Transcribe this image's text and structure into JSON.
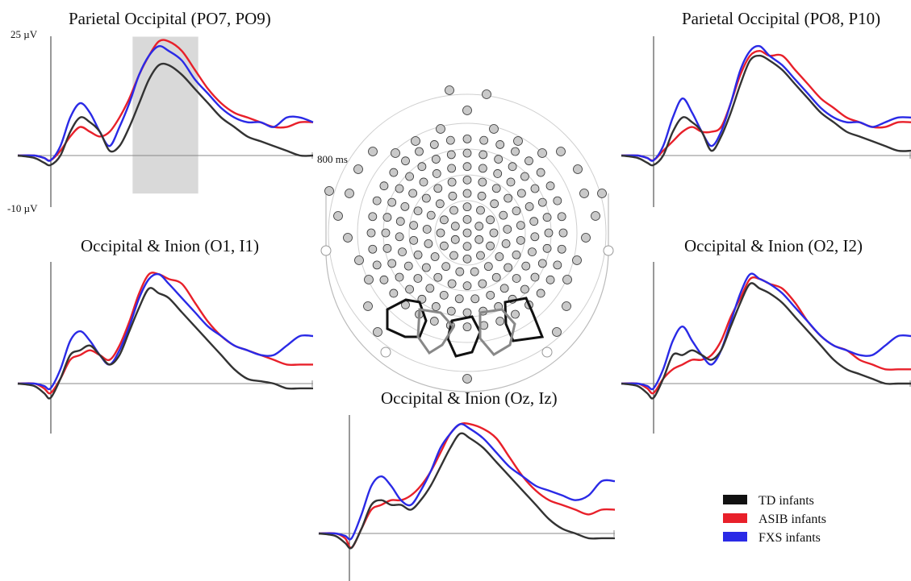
{
  "chart_data": {
    "type": "line",
    "y_units_label_top": "25 µV",
    "y_units_label_bottom": "-10 µV",
    "x_marker_label": "800 ms",
    "ylim": [
      -10,
      25
    ],
    "xlim": [
      -100,
      800
    ],
    "highlight_window": [
      250,
      450
    ],
    "series_names": [
      "TD infants",
      "ASIB infants",
      "FXS infants"
    ],
    "colors": {
      "TD infants": "#333333",
      "ASIB infants": "#e8202a",
      "FXS infants": "#2a2ae6"
    },
    "panels": [
      {
        "id": "po-left",
        "title": "Parietal Occipital (PO7, PO9)",
        "series": [
          {
            "name": "TD infants",
            "x": [
              -100,
              -50,
              -20,
              0,
              30,
              60,
              90,
              120,
              150,
              180,
              210,
              240,
              270,
              300,
              330,
              360,
              400,
              440,
              480,
              520,
              560,
              600,
              640,
              680,
              720,
              760,
              800
            ],
            "y": [
              0,
              -0.5,
              -1.5,
              -2,
              0,
              5,
              8,
              7,
              5,
              1,
              2,
              6,
              11,
              16,
              19,
              19,
              17,
              14,
              11,
              8,
              6,
              4,
              3,
              2,
              1,
              0,
              0
            ]
          },
          {
            "name": "ASIB infants",
            "x": [
              -100,
              -50,
              -20,
              0,
              30,
              60,
              90,
              120,
              150,
              180,
              210,
              240,
              270,
              300,
              330,
              360,
              400,
              440,
              480,
              520,
              560,
              600,
              640,
              680,
              720,
              760,
              800
            ],
            "y": [
              0,
              0,
              -0.5,
              -1,
              1,
              4,
              6,
              5,
              4,
              5,
              8,
              12,
              17,
              21,
              24,
              24,
              22,
              18,
              14,
              11,
              9,
              8,
              7,
              6,
              6,
              7,
              7
            ]
          },
          {
            "name": "FXS infants",
            "x": [
              -100,
              -50,
              -20,
              0,
              30,
              60,
              90,
              120,
              150,
              180,
              210,
              240,
              270,
              300,
              330,
              360,
              400,
              440,
              480,
              520,
              560,
              600,
              640,
              680,
              720,
              760,
              800
            ],
            "y": [
              0,
              0,
              -0.5,
              -1,
              2,
              8,
              11,
              9,
              5,
              2,
              6,
              11,
              17,
              21,
              23,
              22,
              20,
              16,
              13,
              10,
              8,
              7,
              7,
              6,
              8,
              8,
              7
            ]
          }
        ]
      },
      {
        "id": "po-right",
        "title": "Parietal Occipital (PO8, P10)",
        "series": [
          {
            "name": "TD infants",
            "x": [
              -100,
              -50,
              -20,
              0,
              30,
              60,
              90,
              120,
              150,
              180,
              210,
              240,
              270,
              300,
              330,
              360,
              400,
              440,
              480,
              520,
              560,
              600,
              640,
              680,
              720,
              760,
              800
            ],
            "y": [
              0,
              -0.5,
              -1.5,
              -2,
              0,
              5,
              8,
              7,
              5,
              1,
              4,
              9,
              15,
              20,
              21,
              20,
              18,
              15,
              12,
              9,
              7,
              5,
              4,
              3,
              2,
              1,
              1
            ]
          },
          {
            "name": "ASIB infants",
            "x": [
              -100,
              -50,
              -20,
              0,
              30,
              60,
              90,
              120,
              150,
              180,
              210,
              240,
              270,
              300,
              330,
              360,
              400,
              440,
              480,
              520,
              560,
              600,
              640,
              680,
              720,
              760,
              800
            ],
            "y": [
              0,
              0,
              -0.5,
              -1,
              1,
              3,
              5,
              6,
              5,
              5,
              6,
              11,
              17,
              21,
              22,
              21,
              21,
              18,
              15,
              12,
              10,
              8,
              7,
              6,
              6,
              7,
              7
            ]
          },
          {
            "name": "FXS infants",
            "x": [
              -100,
              -50,
              -20,
              0,
              30,
              60,
              90,
              120,
              150,
              180,
              210,
              240,
              270,
              300,
              330,
              360,
              400,
              440,
              480,
              520,
              560,
              600,
              640,
              680,
              720,
              760,
              800
            ],
            "y": [
              0,
              0,
              -0.5,
              -1,
              2,
              8,
              12,
              9,
              5,
              2,
              5,
              11,
              18,
              22,
              23,
              21,
              19,
              16,
              13,
              10,
              8,
              7,
              7,
              6,
              7,
              8,
              8
            ]
          }
        ]
      },
      {
        "id": "oi-left",
        "title": "Occipital & Inion (O1, I1)",
        "series": [
          {
            "name": "TD infants",
            "x": [
              -100,
              -50,
              -20,
              0,
              30,
              60,
              90,
              120,
              150,
              180,
              210,
              240,
              270,
              300,
              330,
              360,
              400,
              440,
              480,
              520,
              560,
              600,
              640,
              680,
              720,
              760,
              800
            ],
            "y": [
              0,
              -0.5,
              -2,
              -3,
              1,
              6,
              7,
              8,
              6,
              4,
              6,
              11,
              16,
              20,
              19,
              18,
              15,
              12,
              9,
              6,
              3,
              1,
              0.5,
              0,
              -1,
              -1,
              -1
            ]
          },
          {
            "name": "ASIB infants",
            "x": [
              -100,
              -50,
              -20,
              0,
              30,
              60,
              90,
              120,
              150,
              180,
              210,
              240,
              270,
              300,
              330,
              360,
              400,
              440,
              480,
              520,
              560,
              600,
              640,
              680,
              720,
              760,
              800
            ],
            "y": [
              0,
              0,
              -1,
              -2,
              1,
              5,
              6,
              7,
              6,
              5,
              8,
              13,
              19,
              23,
              23,
              22,
              21,
              17,
              13,
              10,
              8,
              7,
              6,
              5,
              4,
              4,
              4
            ]
          },
          {
            "name": "FXS infants",
            "x": [
              -100,
              -50,
              -20,
              0,
              30,
              60,
              90,
              120,
              150,
              180,
              210,
              240,
              270,
              300,
              330,
              360,
              400,
              440,
              480,
              520,
              560,
              600,
              640,
              680,
              720,
              760,
              800
            ],
            "y": [
              0,
              0,
              -0.5,
              -1,
              3,
              9,
              11,
              9,
              6,
              4,
              7,
              12,
              18,
              22,
              23,
              21,
              18,
              15,
              12,
              10,
              8,
              7,
              6,
              6,
              8,
              10,
              10
            ]
          }
        ]
      },
      {
        "id": "oi-right",
        "title": "Occipital & Inion (O2, I2)",
        "series": [
          {
            "name": "TD infants",
            "x": [
              -100,
              -50,
              -20,
              0,
              30,
              60,
              90,
              120,
              150,
              180,
              210,
              240,
              270,
              300,
              330,
              360,
              400,
              440,
              480,
              520,
              560,
              600,
              640,
              680,
              720,
              760,
              800
            ],
            "y": [
              0,
              -0.5,
              -2,
              -3,
              1,
              6,
              6,
              7,
              6,
              5,
              7,
              12,
              17,
              21,
              20,
              19,
              17,
              14,
              11,
              8,
              5,
              3,
              2,
              1,
              0,
              0,
              0
            ]
          },
          {
            "name": "ASIB infants",
            "x": [
              -100,
              -50,
              -20,
              0,
              30,
              60,
              90,
              120,
              150,
              180,
              210,
              240,
              270,
              300,
              330,
              360,
              400,
              440,
              480,
              520,
              560,
              600,
              640,
              680,
              720,
              760,
              800
            ],
            "y": [
              0,
              0,
              -1,
              -2,
              1,
              3,
              4,
              5,
              5,
              6,
              9,
              14,
              18,
              22,
              22,
              21,
              20,
              17,
              13,
              10,
              8,
              7,
              5,
              4,
              3,
              3,
              3
            ]
          },
          {
            "name": "FXS infants",
            "x": [
              -100,
              -50,
              -20,
              0,
              30,
              60,
              90,
              120,
              150,
              180,
              210,
              240,
              270,
              300,
              330,
              360,
              400,
              440,
              480,
              520,
              560,
              600,
              640,
              680,
              720,
              760,
              800
            ],
            "y": [
              0,
              0,
              -0.5,
              -1,
              3,
              9,
              12,
              9,
              6,
              4,
              7,
              13,
              19,
              23,
              22,
              21,
              19,
              16,
              13,
              10,
              8,
              7,
              6,
              6,
              8,
              10,
              10
            ]
          }
        ]
      },
      {
        "id": "oi-mid",
        "title": "Occipital & Inion (Oz, Iz)",
        "series": [
          {
            "name": "TD infants",
            "x": [
              -100,
              -50,
              -20,
              0,
              30,
              60,
              90,
              120,
              150,
              180,
              210,
              240,
              270,
              300,
              330,
              360,
              400,
              440,
              480,
              520,
              560,
              600,
              640,
              680,
              720,
              760,
              800
            ],
            "y": [
              0,
              -0.5,
              -2,
              -3,
              1,
              6,
              7,
              6,
              6,
              5,
              7,
              10,
              14,
              18,
              21,
              20,
              18,
              15,
              12,
              9,
              6,
              3,
              1,
              0,
              -1,
              -1,
              -1
            ]
          },
          {
            "name": "ASIB infants",
            "x": [
              -100,
              -50,
              -20,
              0,
              30,
              60,
              90,
              120,
              150,
              180,
              210,
              240,
              270,
              300,
              330,
              360,
              400,
              440,
              480,
              520,
              560,
              600,
              640,
              680,
              720,
              760,
              800
            ],
            "y": [
              0,
              0,
              -1,
              -3,
              1,
              5,
              6,
              7,
              7,
              8,
              10,
              13,
              17,
              21,
              23,
              23,
              22,
              20,
              16,
              12,
              9,
              7,
              6,
              5,
              4,
              5,
              5
            ]
          },
          {
            "name": "FXS infants",
            "x": [
              -100,
              -50,
              -20,
              0,
              30,
              60,
              90,
              120,
              150,
              180,
              210,
              240,
              270,
              300,
              330,
              360,
              400,
              440,
              480,
              520,
              560,
              600,
              640,
              680,
              720,
              760,
              800
            ],
            "y": [
              0,
              0,
              -0.5,
              -1,
              4,
              10,
              12,
              10,
              7,
              6,
              9,
              13,
              18,
              21,
              23,
              22,
              20,
              17,
              14,
              12,
              10,
              9,
              8,
              7,
              8,
              11,
              11
            ]
          }
        ]
      }
    ],
    "legend": {
      "placement": "bottom-right",
      "entries": [
        "TD infants",
        "ASIB infants",
        "FXS infants"
      ]
    }
  },
  "head_map": {
    "selected_groups": [
      {
        "name": "left-parietal-occipital",
        "style": "black"
      },
      {
        "name": "right-parietal-occipital",
        "style": "black"
      },
      {
        "name": "occipital-inion",
        "style": "gray"
      }
    ]
  }
}
